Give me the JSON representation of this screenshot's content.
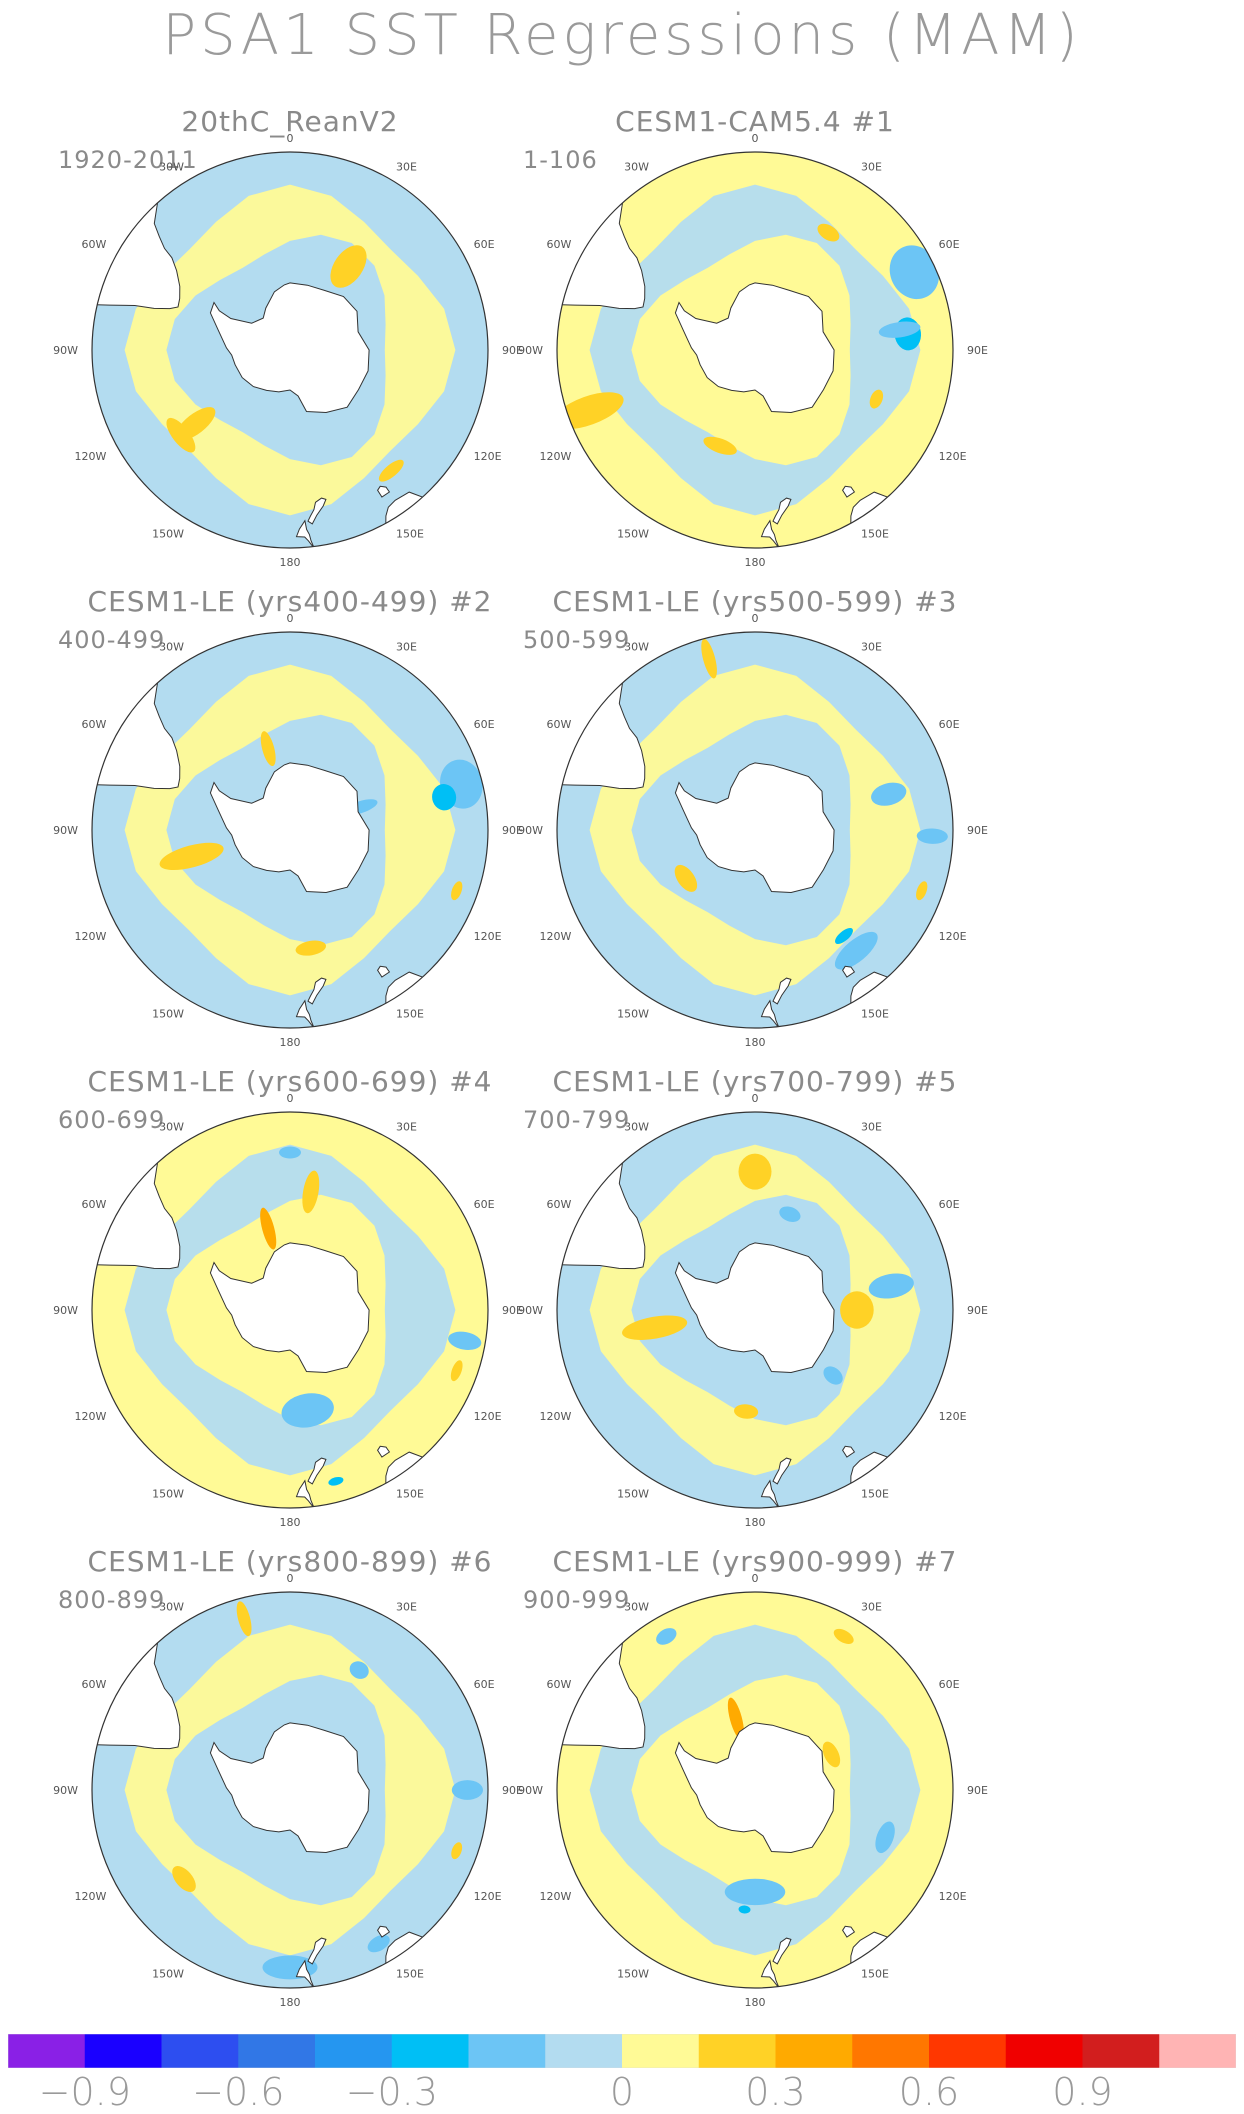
{
  "title": "PSA1 SST Regressions (MAM)",
  "panels": [
    {
      "title": "20thC_ReanV2",
      "period": "1920-2011",
      "patches": [
        [
          "pos",
          232,
          370,
          38,
          14
        ],
        [
          "pos",
          232,
          225,
          18,
          40
        ],
        [
          "pos",
          35,
          260,
          26,
          40
        ],
        [
          "pos",
          140,
          395,
          28,
          10
        ]
      ]
    },
    {
      "title": "CESM1-CAM5.4      #1",
      "period": "1-106",
      "patches": [
        [
          "neg",
          64,
          270,
          50,
          40
        ],
        [
          "neg2",
          84,
          276,
          30,
          22
        ],
        [
          "pos",
          250,
          300,
          26,
          62
        ],
        [
          "pos",
          200,
          380,
          32,
          12
        ],
        [
          "pos",
          32,
          190,
          22,
          12
        ],
        [
          "neg",
          82,
          278,
          14,
          35
        ],
        [
          "pos",
          112,
          312,
          18,
          10
        ]
      ]
    },
    {
      "title": "CESM1-LE (yrs400-499) #2",
      "period": "400-499",
      "patches": [
        [
          "neg",
          75,
          270,
          45,
          35
        ],
        [
          "neg2",
          78,
          275,
          24,
          20
        ],
        [
          "pos",
          255,
          290,
          20,
          55
        ],
        [
          "pos",
          170,
          375,
          28,
          12
        ],
        [
          "pos",
          110,
          300,
          18,
          8
        ],
        [
          "pos",
          345,
          235,
          6,
          30
        ],
        [
          "neg",
          72,
          268,
          8,
          30
        ]
      ]
    },
    {
      "title": "CESM1-LE (yrs500-599) #3",
      "period": "500-599",
      "patches": [
        [
          "neg",
          140,
          305,
          48,
          18
        ],
        [
          "neg2",
          140,
          310,
          20,
          8
        ],
        [
          "pos",
          235,
          355,
          28,
          14
        ],
        [
          "pos",
          345,
          240,
          8,
          34
        ],
        [
          "pos",
          110,
          300,
          18,
          8
        ],
        [
          "neg",
          75,
          70,
          20,
          30
        ],
        [
          "neg",
          92,
          120,
          14,
          26
        ]
      ]
    },
    {
      "title": "CESM1-LE (yrs600-699) #4",
      "period": "600-699",
      "patches": [
        [
          "neg",
          170,
          260,
          48,
          28
        ],
        [
          "pos",
          10,
          255,
          14,
          36
        ],
        [
          "pos2",
          345,
          235,
          8,
          36
        ],
        [
          "neg",
          100,
          120,
          16,
          28
        ],
        [
          "pos",
          110,
          300,
          20,
          8
        ],
        [
          "neg",
          0,
          185,
          20,
          10
        ],
        [
          "neg2",
          165,
          270,
          14,
          6
        ]
      ]
    },
    {
      "title": "CESM1-LE (yrs700-799) #5",
      "period": "700-799",
      "patches": [
        [
          "pos",
          0,
          160,
          30,
          30
        ],
        [
          "pos",
          90,
          200,
          34,
          28
        ],
        [
          "pos",
          260,
          290,
          20,
          55
        ],
        [
          "pos",
          185,
          380,
          22,
          12
        ],
        [
          "neg",
          80,
          310,
          22,
          38
        ],
        [
          "neg",
          20,
          110,
          20,
          12
        ],
        [
          "neg",
          130,
          320,
          14,
          18
        ]
      ]
    },
    {
      "title": "CESM1-LE (yrs800-899) #6",
      "period": "800-899",
      "patches": [
        [
          "neg",
          180,
          300,
          50,
          20
        ],
        [
          "neg",
          150,
          270,
          22,
          12
        ],
        [
          "pos",
          230,
          340,
          28,
          14
        ],
        [
          "pos",
          345,
          240,
          6,
          30
        ],
        [
          "neg",
          90,
          210,
          18,
          26
        ],
        [
          "neg",
          30,
          130,
          18,
          14
        ],
        [
          "pos",
          110,
          300,
          16,
          8
        ]
      ]
    },
    {
      "title": "CESM1-LE (yrs900-999) #7",
      "period": "900-999",
      "patches": [
        [
          "neg",
          180,
          320,
          55,
          22
        ],
        [
          "neg",
          330,
          120,
          20,
          12
        ],
        [
          "pos2",
          345,
          238,
          8,
          36
        ],
        [
          "neg",
          110,
          340,
          30,
          14
        ],
        [
          "pos",
          65,
          205,
          25,
          12
        ],
        [
          "neg2",
          185,
          315,
          8,
          5
        ],
        [
          "pos",
          30,
          210,
          20,
          10
        ]
      ]
    }
  ],
  "longitude_labels": [
    "0",
    "30E",
    "60E",
    "90E",
    "120E",
    "150E",
    "180",
    "150W",
    "120W",
    "90W",
    "60W",
    "30W"
  ],
  "colorbar": {
    "colors": [
      "#8a20e6",
      "#1a00ff",
      "#2d4ef0",
      "#3177e6",
      "#2596f0",
      "#00bff5",
      "#6cc5f5",
      "#b3dcf0",
      "#fffa96",
      "#ffd226",
      "#ffaa00",
      "#ff7700",
      "#ff3700",
      "#f00000",
      "#d21e1e",
      "#ffb4b4"
    ],
    "labels": [
      "−0.9",
      "−0.6",
      "−0.3",
      "0",
      "0.3",
      "0.6",
      "0.9"
    ],
    "label_boundaries": [
      1,
      3,
      5,
      8,
      10,
      12,
      14
    ]
  },
  "colors": {
    "neg_weak": "#b3dcf0",
    "neg_mid": "#6cc5f5",
    "neg_strong": "#00bff5",
    "pos_weak": "#fffa96",
    "pos_mid": "#ffd226",
    "pos_strong": "#ffaa00",
    "land": "#ffffff",
    "coast": "#333333"
  }
}
